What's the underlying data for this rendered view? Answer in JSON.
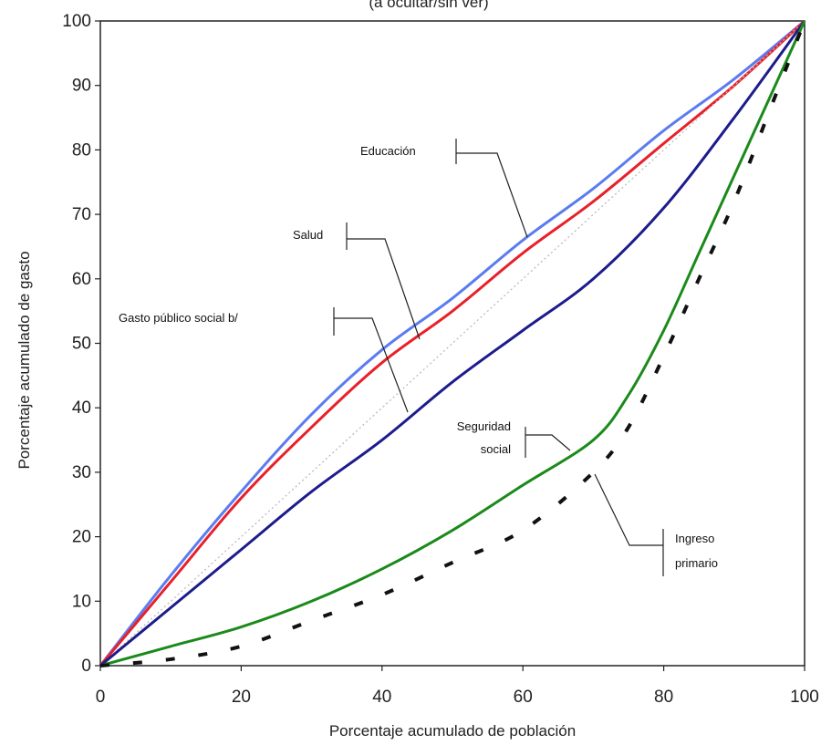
{
  "chart_data": {
    "type": "line",
    "title": "(a ocultar/sin ver)",
    "xlabel": "Porcentaje acumulado de población",
    "ylabel": "Porcentaje acumulado de gasto",
    "xlim": [
      0,
      100
    ],
    "ylim": [
      0,
      100
    ],
    "x_ticks": [
      0,
      20,
      40,
      60,
      80,
      100
    ],
    "y_ticks": [
      0,
      10,
      20,
      30,
      40,
      50,
      60,
      70,
      80,
      90,
      100
    ],
    "grid": false,
    "series": [
      {
        "name": "Educación",
        "color": "#5b7cf0",
        "dash": "solid",
        "x": [
          0,
          10,
          20,
          30,
          40,
          50,
          60,
          70,
          80,
          90,
          100
        ],
        "y": [
          0,
          14,
          27,
          39,
          49,
          57,
          66,
          74,
          83,
          91,
          100
        ]
      },
      {
        "name": "Salud",
        "color": "#e8202a",
        "dash": "solid",
        "x": [
          0,
          10,
          20,
          30,
          40,
          50,
          60,
          70,
          80,
          90,
          100
        ],
        "y": [
          0,
          13,
          26,
          37,
          47,
          55,
          64,
          72,
          81,
          90,
          100
        ]
      },
      {
        "name": "",
        "color": "#bbbbbb",
        "dash": "dotted",
        "x": [
          0,
          100
        ],
        "y": [
          0,
          100
        ]
      },
      {
        "name": "Gasto público social b/",
        "color": "#1c1c8c",
        "dash": "solid",
        "x": [
          0,
          10,
          20,
          30,
          40,
          50,
          60,
          70,
          80,
          90,
          100
        ],
        "y": [
          0,
          9,
          18,
          27,
          35,
          44,
          52,
          60,
          71,
          85,
          100
        ]
      },
      {
        "name": "Seguridad social",
        "color": "#1a8a1a",
        "dash": "solid",
        "x": [
          0,
          10,
          20,
          30,
          40,
          50,
          60,
          70,
          75,
          80,
          85,
          90,
          95,
          100
        ],
        "y": [
          0,
          3,
          6,
          10,
          15,
          21,
          28,
          35,
          42,
          52,
          64,
          76,
          88,
          100
        ]
      },
      {
        "name": "Ingreso primario",
        "color": "#111111",
        "dash": "dashed",
        "x": [
          0,
          10,
          20,
          30,
          40,
          50,
          60,
          70,
          75,
          80,
          85,
          90,
          95,
          100
        ],
        "y": [
          0,
          1,
          3,
          7,
          11,
          16,
          21,
          30,
          37,
          48,
          60,
          72,
          86,
          100
        ]
      }
    ],
    "annotations": [
      {
        "label": "Educación",
        "series": "Educación"
      },
      {
        "label": "Salud",
        "series": "Salud"
      },
      {
        "label": "Gasto público social b/",
        "series": "Gasto público social b/"
      },
      {
        "label_lines": [
          "Seguridad",
          "social"
        ],
        "series": "Seguridad social"
      },
      {
        "label_lines": [
          "Ingreso",
          "primario"
        ],
        "series": "Ingreso primario"
      }
    ]
  }
}
